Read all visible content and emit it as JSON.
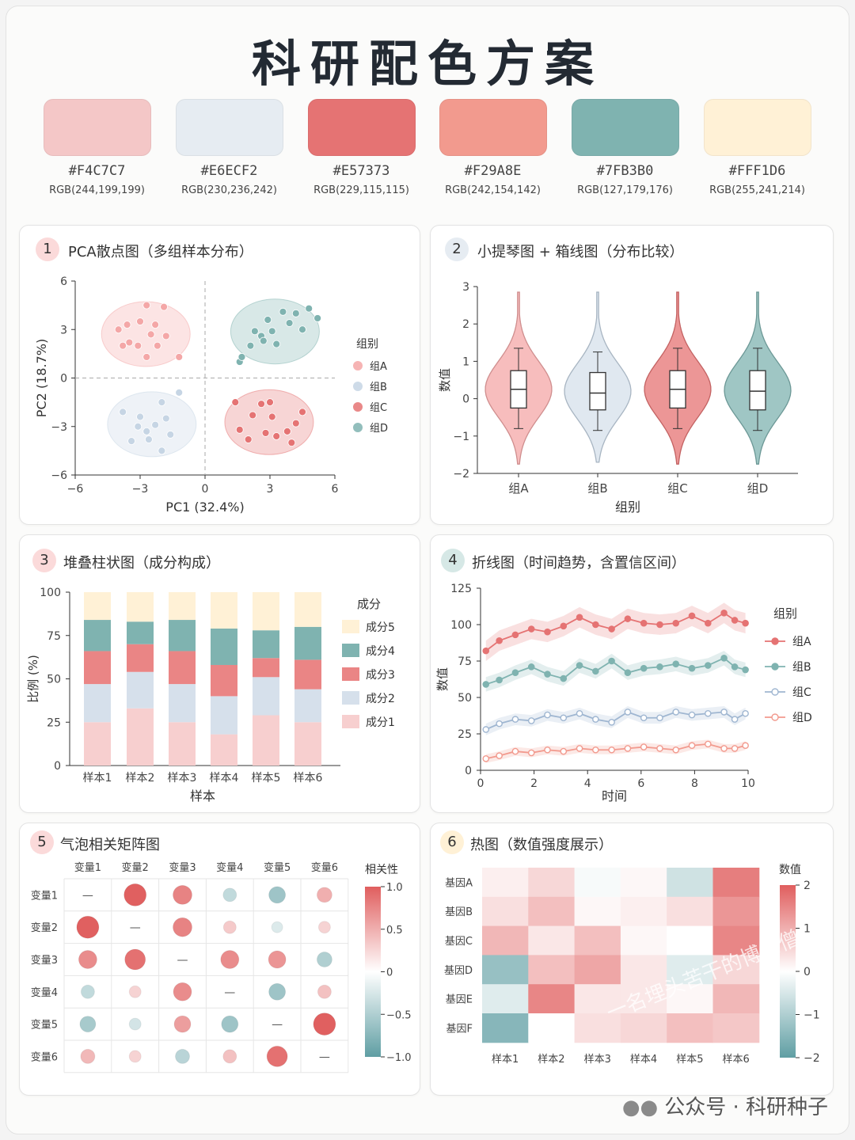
{
  "title": "科研配色方案",
  "palette": [
    {
      "hex": "#F4C7C7",
      "rgb": "RGB(244,199,199)"
    },
    {
      "hex": "#E6ECF2",
      "rgb": "RGB(230,236,242)"
    },
    {
      "hex": "#E57373",
      "rgb": "RGB(229,115,115)"
    },
    {
      "hex": "#F29A8E",
      "rgb": "RGB(242,154,142)"
    },
    {
      "hex": "#7FB3B0",
      "rgb": "RGB(127,179,176)"
    },
    {
      "hex": "#FFF1D6",
      "rgb": "RGB(255,241,214)"
    }
  ],
  "colors": {
    "A": "#f4a7a7",
    "B": "#c6d5e4",
    "C": "#e57373",
    "D": "#7fb3b0"
  },
  "panels": [
    {
      "num": "1",
      "title": "PCA散点图（多组样本分布）"
    },
    {
      "num": "2",
      "title": "小提琴图 + 箱线图（分布比较）"
    },
    {
      "num": "3",
      "title": "堆叠柱状图（成分构成）"
    },
    {
      "num": "4",
      "title": "折线图（时间趋势，含置信区间）"
    },
    {
      "num": "5",
      "title": "气泡相关矩阵图"
    },
    {
      "num": "6",
      "title": "热图（数值强度展示）"
    }
  ],
  "footer": "公众号 · 科研种子",
  "watermark": "一名埋头苦干的博士僧",
  "chart_data": [
    {
      "type": "scatter",
      "xlabel": "PC1 (32.4%)",
      "ylabel": "PC2 (18.7%)",
      "xlim": [
        -6,
        6
      ],
      "ylim": [
        -6,
        6
      ],
      "xticks": [
        -6,
        -3,
        0,
        3,
        6
      ],
      "yticks": [
        -6,
        -3,
        0,
        3,
        6
      ],
      "legend_title": "组别",
      "legend_position": "right",
      "series": [
        {
          "name": "组A",
          "points": [
            [
              -4.0,
              3.0
            ],
            [
              -3.6,
              3.3
            ],
            [
              -3.0,
              3.5
            ],
            [
              -2.3,
              3.3
            ],
            [
              -1.9,
              4.4
            ],
            [
              -2.7,
              4.5
            ],
            [
              -3.5,
              2.2
            ],
            [
              -3.1,
              2.0
            ],
            [
              -2.7,
              1.3
            ],
            [
              -2.2,
              2.0
            ],
            [
              -1.8,
              2.6
            ],
            [
              -3.8,
              2.0
            ],
            [
              -2.5,
              2.7
            ],
            [
              -1.2,
              1.3
            ]
          ]
        },
        {
          "name": "组B",
          "points": [
            [
              -3.8,
              -2.1
            ],
            [
              -3.1,
              -3.0
            ],
            [
              -2.7,
              -3.3
            ],
            [
              -2.3,
              -2.9
            ],
            [
              -1.8,
              -2.5
            ],
            [
              -1.6,
              -3.5
            ],
            [
              -2.0,
              -4.5
            ],
            [
              -2.6,
              -3.8
            ],
            [
              -3.4,
              -3.9
            ],
            [
              -2.0,
              -1.5
            ],
            [
              -1.2,
              -0.9
            ],
            [
              -3.0,
              -2.4
            ]
          ]
        },
        {
          "name": "组C",
          "points": [
            [
              1.4,
              -1.5
            ],
            [
              2.2,
              -2.3
            ],
            [
              3.1,
              -2.4
            ],
            [
              4.2,
              -2.8
            ],
            [
              4.5,
              -2.1
            ],
            [
              3.0,
              -1.5
            ],
            [
              3.8,
              -3.3
            ],
            [
              3.3,
              -3.6
            ],
            [
              2.0,
              -3.8
            ],
            [
              2.8,
              -3.4
            ],
            [
              4.0,
              -4.0
            ],
            [
              1.6,
              -3.2
            ],
            [
              2.6,
              -1.6
            ]
          ]
        },
        {
          "name": "组D",
          "points": [
            [
              1.6,
              1.0
            ],
            [
              2.1,
              2.0
            ],
            [
              2.6,
              2.6
            ],
            [
              3.1,
              2.9
            ],
            [
              3.9,
              3.4
            ],
            [
              4.2,
              4.0
            ],
            [
              4.8,
              4.3
            ],
            [
              5.2,
              3.7
            ],
            [
              2.3,
              2.9
            ],
            [
              3.3,
              2.1
            ],
            [
              2.7,
              2.3
            ],
            [
              4.5,
              3.0
            ],
            [
              2.9,
              3.6
            ],
            [
              3.6,
              4.1
            ],
            [
              1.7,
              1.3
            ]
          ]
        }
      ]
    },
    {
      "type": "violin+box",
      "xlabel": "组别",
      "ylabel": "数值",
      "ylim": [
        -2,
        3
      ],
      "yticks": [
        -2,
        -1,
        0,
        1,
        2,
        3
      ],
      "categories": [
        "组A",
        "组B",
        "组C",
        "组D"
      ],
      "box": [
        {
          "min": -0.8,
          "q1": -0.25,
          "median": 0.25,
          "q3": 0.75,
          "max": 1.35
        },
        {
          "min": -0.85,
          "q1": -0.3,
          "median": 0.15,
          "q3": 0.7,
          "max": 1.25
        },
        {
          "min": -0.8,
          "q1": -0.25,
          "median": 0.25,
          "q3": 0.75,
          "max": 1.35
        },
        {
          "min": -0.85,
          "q1": -0.3,
          "median": 0.2,
          "q3": 0.75,
          "max": 1.35
        }
      ],
      "violin_range": [
        [
          -1.75,
          2.85
        ],
        [
          -1.7,
          2.85
        ],
        [
          -1.75,
          2.85
        ],
        [
          -1.75,
          2.85
        ]
      ]
    },
    {
      "type": "bar",
      "stacked": true,
      "xlabel": "样本",
      "ylabel": "比例 (%)",
      "ylim": [
        0,
        100
      ],
      "yticks": [
        0,
        25,
        50,
        75,
        100
      ],
      "categories": [
        "样本1",
        "样本2",
        "样本3",
        "样本4",
        "样本5",
        "样本6"
      ],
      "legend_title": "成分",
      "legend_order": [
        "成分5",
        "成分4",
        "成分3",
        "成分2",
        "成分1"
      ],
      "series": [
        {
          "name": "成分1",
          "values": [
            25,
            33,
            25,
            18,
            29,
            25
          ]
        },
        {
          "name": "成分2",
          "values": [
            22,
            21,
            22,
            22,
            22,
            19
          ]
        },
        {
          "name": "成分3",
          "values": [
            19,
            16,
            19,
            18,
            11,
            17
          ]
        },
        {
          "name": "成分4",
          "values": [
            18,
            13,
            18,
            21,
            16,
            19
          ]
        },
        {
          "name": "成分5",
          "values": [
            16,
            17,
            16,
            21,
            22,
            20
          ]
        }
      ]
    },
    {
      "type": "line",
      "xlabel": "时间",
      "ylabel": "数值",
      "xlim": [
        0,
        10
      ],
      "ylim": [
        0,
        125
      ],
      "xticks": [
        0,
        2,
        4,
        6,
        8,
        10
      ],
      "yticks": [
        0,
        25,
        50,
        75,
        100,
        125
      ],
      "legend_title": "组别",
      "x": [
        0.2,
        0.7,
        1.3,
        1.9,
        2.5,
        3.1,
        3.7,
        4.3,
        4.9,
        5.5,
        6.1,
        6.7,
        7.3,
        7.9,
        8.5,
        9.1,
        9.5,
        9.9
      ],
      "series": [
        {
          "name": "组A",
          "values": [
            82,
            89,
            93,
            97,
            95,
            99,
            105,
            100,
            97,
            104,
            101,
            100,
            101,
            106,
            101,
            108,
            103,
            101
          ]
        },
        {
          "name": "组B",
          "values": [
            59,
            62,
            67,
            71,
            66,
            63,
            72,
            68,
            75,
            67,
            70,
            71,
            73,
            70,
            72,
            77,
            71,
            69
          ]
        },
        {
          "name": "组C",
          "values": [
            28,
            32,
            35,
            34,
            38,
            36,
            39,
            35,
            33,
            40,
            36,
            36,
            40,
            38,
            39,
            40,
            35,
            39
          ]
        },
        {
          "name": "组D",
          "values": [
            8,
            10,
            13,
            12,
            14,
            13,
            15,
            14,
            14,
            15,
            16,
            15,
            14,
            17,
            18,
            15,
            15,
            17
          ]
        }
      ]
    },
    {
      "type": "bubble-correlation",
      "variables": [
        "变量1",
        "变量2",
        "变量3",
        "变量4",
        "变量5",
        "变量6"
      ],
      "diagonal_symbol": "—",
      "legend_title": "相关性",
      "colorbar_ticks": [
        1.0,
        0.5,
        0,
        -0.5,
        -1.0
      ],
      "colorbar_tick_labels": [
        "1.0",
        "0.5",
        "0",
        "−0.5",
        "−1.0"
      ],
      "matrix": [
        [
          null,
          0.9,
          0.7,
          -0.35,
          -0.55,
          0.45
        ],
        [
          0.9,
          null,
          0.7,
          0.3,
          -0.2,
          0.25
        ],
        [
          0.65,
          0.8,
          null,
          0.65,
          0.6,
          -0.45
        ],
        [
          -0.35,
          0.25,
          0.65,
          null,
          -0.55,
          0.35
        ],
        [
          -0.5,
          -0.25,
          0.55,
          -0.55,
          null,
          0.9
        ],
        [
          0.4,
          0.25,
          -0.4,
          0.35,
          0.8,
          null
        ]
      ]
    },
    {
      "type": "heatmap",
      "rows": [
        "基因A",
        "基因B",
        "基因C",
        "基因D",
        "基因E",
        "基因F"
      ],
      "cols": [
        "样本1",
        "样本2",
        "样本3",
        "样本4",
        "样本5",
        "样本6"
      ],
      "legend_title": "数值",
      "colorbar_ticks": [
        2,
        1,
        0,
        -1,
        -2
      ],
      "colorbar_tick_labels": [
        "2",
        "1",
        "0",
        "−1",
        "−2"
      ],
      "values": [
        [
          0.2,
          0.5,
          -0.1,
          0.1,
          -0.6,
          1.6
        ],
        [
          0.4,
          0.8,
          0.1,
          0.2,
          0.4,
          1.3
        ],
        [
          0.9,
          0.3,
          0.8,
          0.1,
          0.0,
          1.5
        ],
        [
          -1.3,
          0.8,
          1.1,
          0.3,
          -0.4,
          0.5
        ],
        [
          -0.4,
          1.5,
          0.3,
          0.3,
          0.1,
          0.9
        ],
        [
          -1.5,
          0.0,
          0.4,
          0.5,
          0.8,
          0.7
        ]
      ]
    }
  ]
}
